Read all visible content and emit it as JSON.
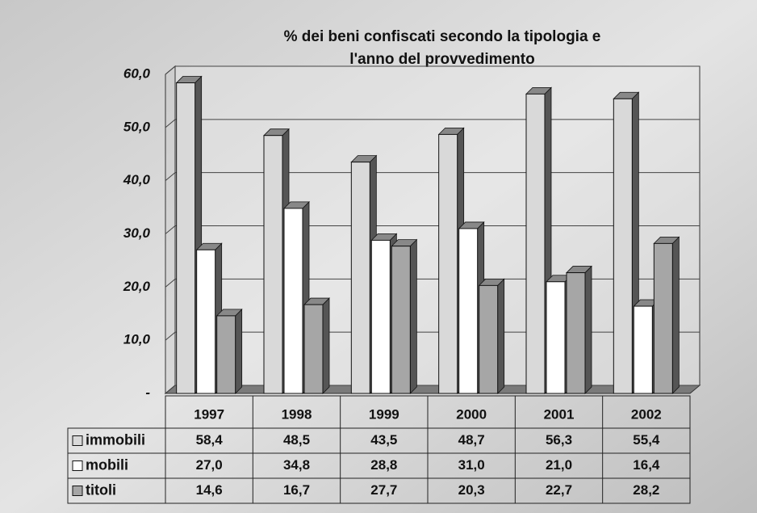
{
  "chart_data": {
    "type": "bar",
    "title": [
      "% dei beni confiscati secondo la tipologia e",
      "l'anno del provvedimento"
    ],
    "categories": [
      "1997",
      "1998",
      "1999",
      "2000",
      "2001",
      "2002"
    ],
    "series": [
      {
        "name": "immobili",
        "color": "#d9d9d9",
        "values": [
          58.4,
          48.5,
          43.5,
          48.7,
          56.3,
          55.4
        ],
        "value_labels": [
          "58,4",
          "48,5",
          "43,5",
          "48,7",
          "56,3",
          "55,4"
        ]
      },
      {
        "name": "mobili",
        "color": "#ffffff",
        "values": [
          27.0,
          34.8,
          28.8,
          31.0,
          21.0,
          16.4
        ],
        "value_labels": [
          "27,0",
          "34,8",
          "28,8",
          "31,0",
          "21,0",
          "16,4"
        ]
      },
      {
        "name": "titoli",
        "color": "#a6a6a6",
        "values": [
          14.6,
          16.7,
          27.7,
          20.3,
          22.7,
          28.2
        ],
        "value_labels": [
          "14,6",
          "16,7",
          "27,7",
          "20,3",
          "22,7",
          "28,2"
        ]
      }
    ],
    "ylim": [
      0,
      60
    ],
    "yticks": [
      {
        "value": 0,
        "label": "-"
      },
      {
        "value": 10,
        "label": "10,0"
      },
      {
        "value": 20,
        "label": "20,0"
      },
      {
        "value": 30,
        "label": "30,0"
      },
      {
        "value": 40,
        "label": "40,0"
      },
      {
        "value": 50,
        "label": "50,0"
      },
      {
        "value": 60,
        "label": "60,0"
      }
    ],
    "grid": true
  }
}
